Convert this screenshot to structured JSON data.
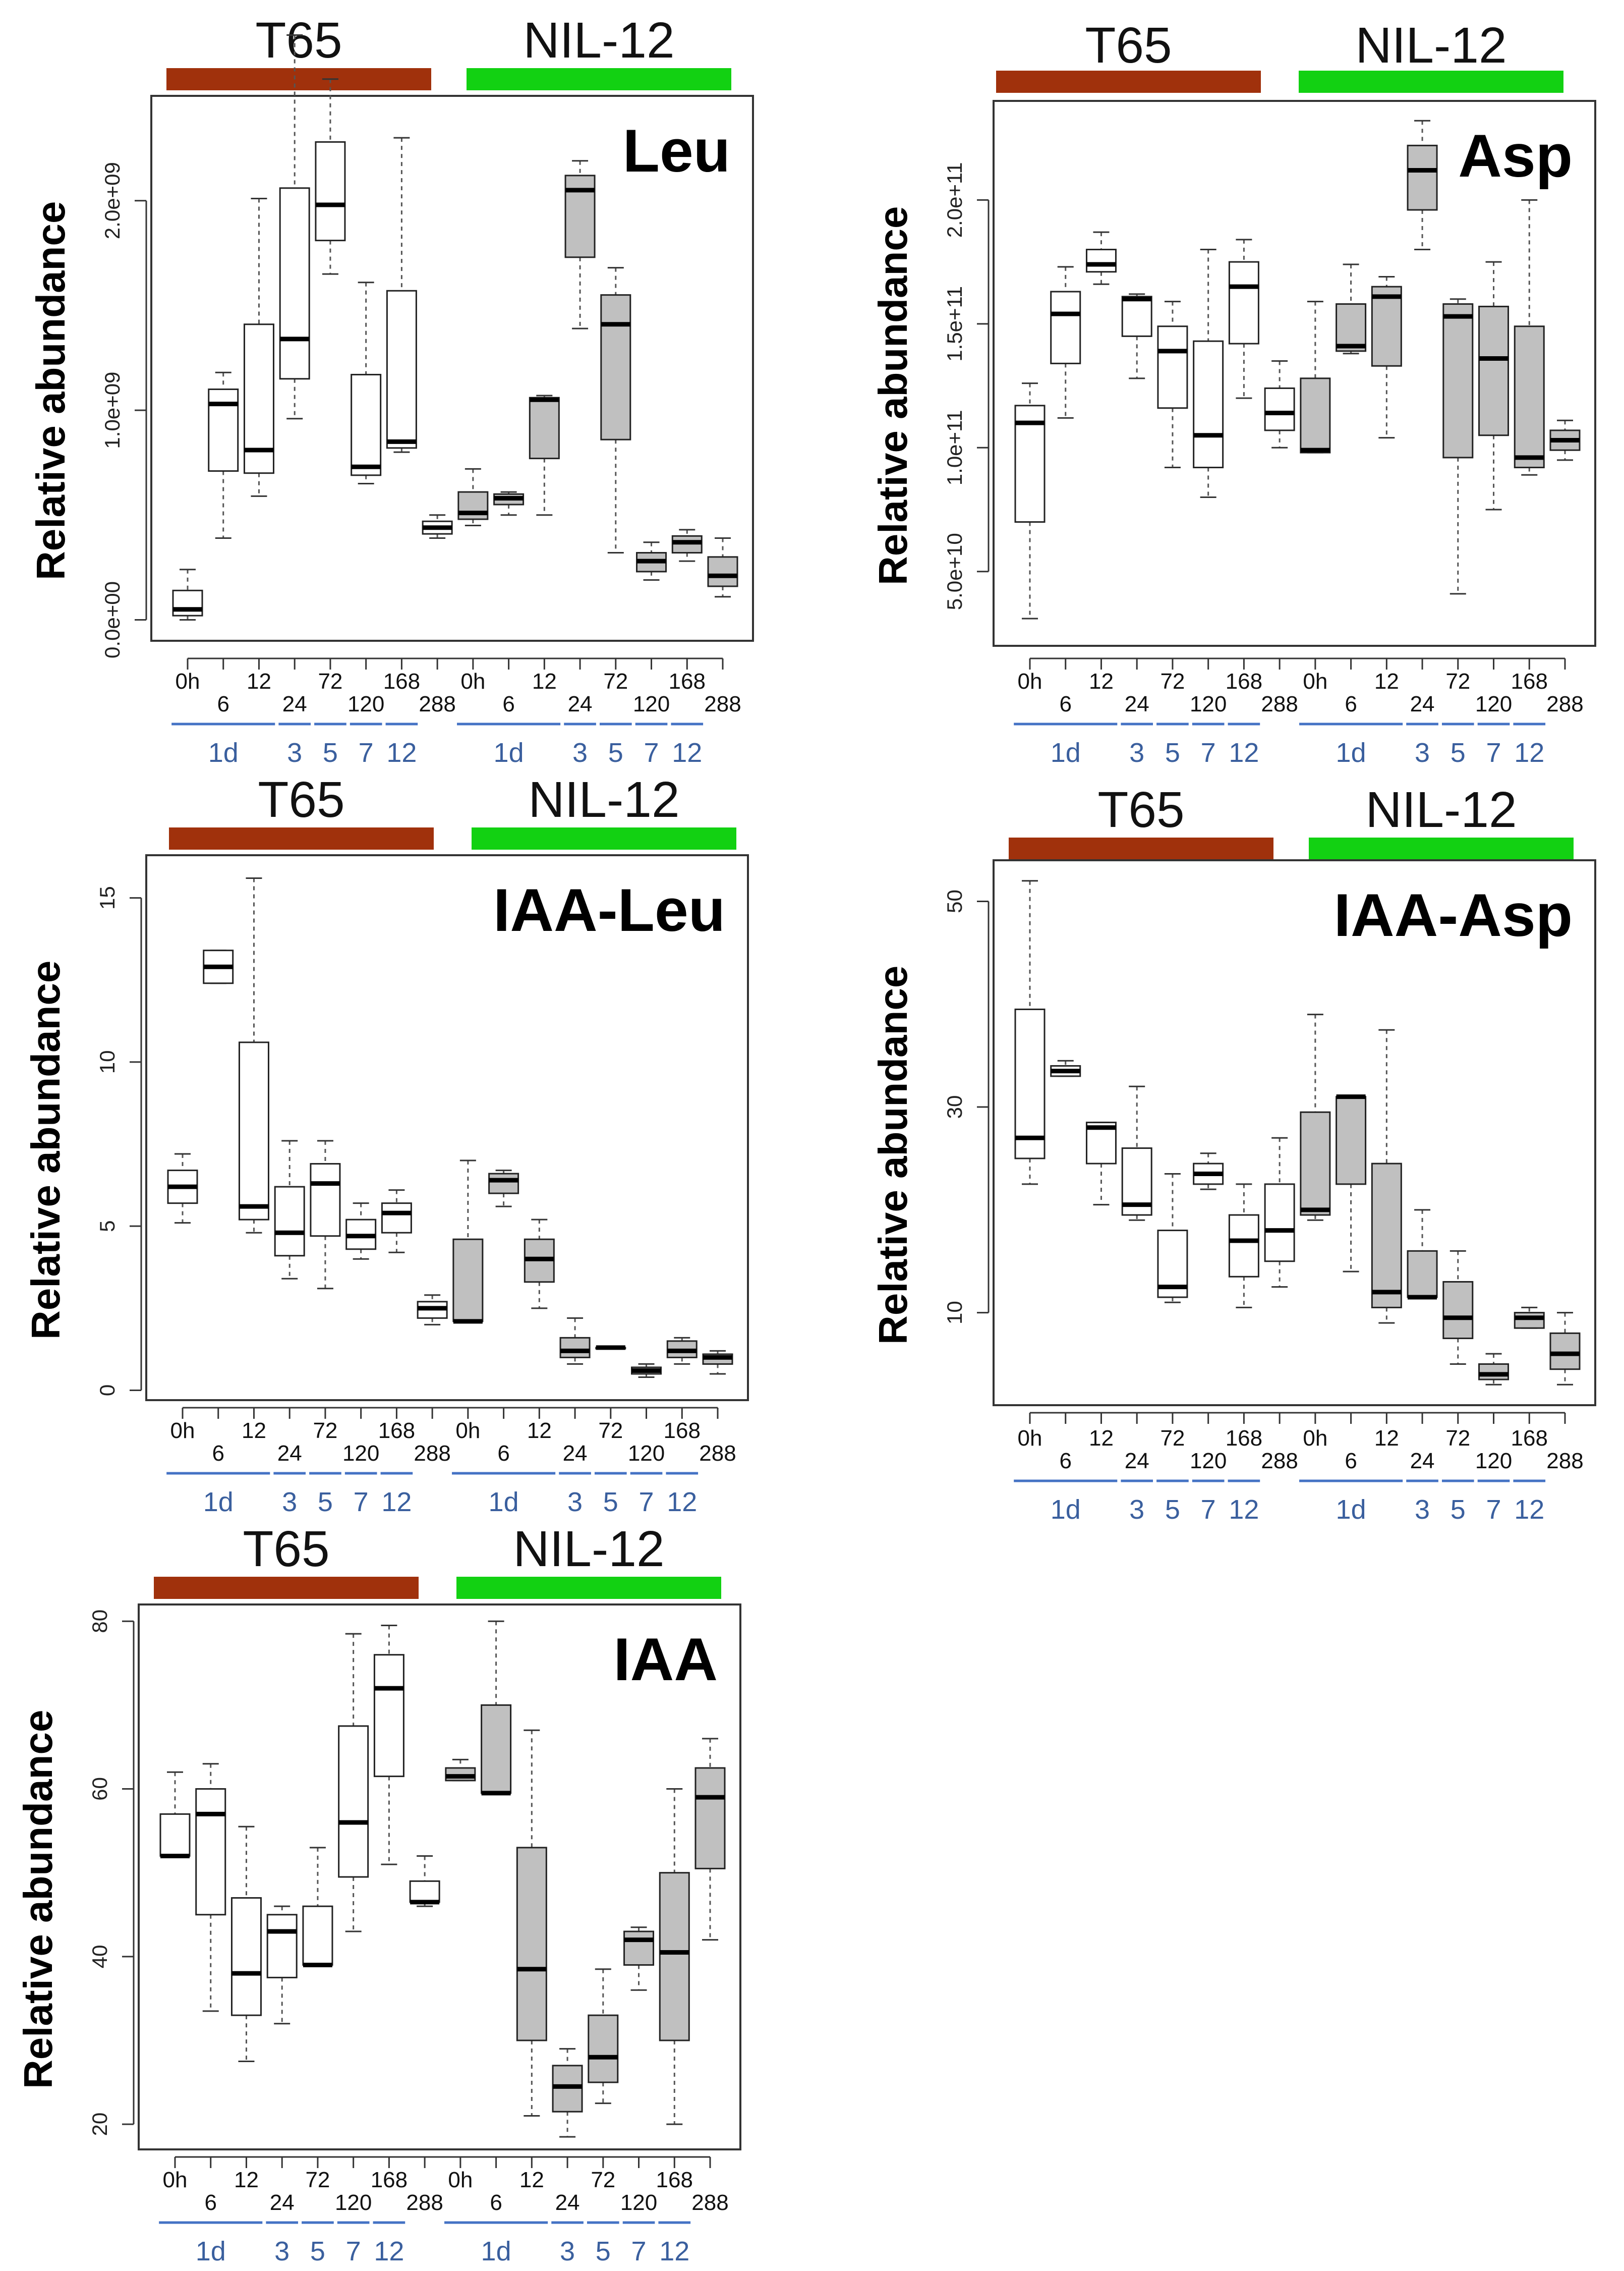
{
  "colors": {
    "t65_bar": "#a0310c",
    "nil_bar": "#12d112",
    "t65_fill": "#ffffff",
    "nil_fill": "#c0c0c0",
    "day_line": "#4472c4",
    "day_text": "#3a5f9e"
  },
  "groups": {
    "t65": "T65",
    "nil": "NIL-12"
  },
  "ylabel": "Relative abundance",
  "hour_labels": [
    "0h",
    "6",
    "12",
    "24",
    "72",
    "120",
    "168",
    "288",
    "0h",
    "6",
    "12",
    "24",
    "72",
    "120",
    "168",
    "288"
  ],
  "day_labels": [
    "1d",
    "3",
    "5",
    "7",
    "12",
    "1d",
    "3",
    "5",
    "7",
    "12"
  ],
  "chart_data": [
    {
      "type": "boxplot",
      "title": "Leu",
      "ylabel": "Relative abundance",
      "xlabel": "",
      "ylim": [
        -100000000.0,
        2500000000.0
      ],
      "yticks": [
        0,
        1000000000.0,
        2000000000.0
      ],
      "ytick_labels": [
        "0.0e+00",
        "1.0e+09",
        "2.0e+09"
      ],
      "groups": [
        "T65",
        "NIL-12"
      ],
      "boxes": [
        {
          "group": "T65",
          "time": "0h",
          "min": 0.0,
          "q1": 20000000.0,
          "median": 50000000.0,
          "q3": 140000000.0,
          "max": 240000000.0
        },
        {
          "group": "T65",
          "time": "6",
          "min": 390000000.0,
          "q1": 710000000.0,
          "median": 1030000000.0,
          "q3": 1100000000.0,
          "max": 1180000000.0
        },
        {
          "group": "T65",
          "time": "12",
          "min": 590000000.0,
          "q1": 700000000.0,
          "median": 810000000.0,
          "q3": 1410000000.0,
          "max": 2010000000.0
        },
        {
          "group": "T65",
          "time": "24",
          "min": 960000000.0,
          "q1": 1150000000.0,
          "median": 1340000000.0,
          "q3": 2060000000.0,
          "max": 2790000000.0
        },
        {
          "group": "T65",
          "time": "72",
          "min": 1650000000.0,
          "q1": 1810000000.0,
          "median": 1980000000.0,
          "q3": 2280000000.0,
          "max": 2580000000.0
        },
        {
          "group": "T65",
          "time": "120",
          "min": 650000000.0,
          "q1": 690000000.0,
          "median": 730000000.0,
          "q3": 1170000000.0,
          "max": 1610000000.0
        },
        {
          "group": "T65",
          "time": "168",
          "min": 800000000.0,
          "q1": 820000000.0,
          "median": 850000000.0,
          "q3": 1570000000.0,
          "max": 2300000000.0
        },
        {
          "group": "T65",
          "time": "288",
          "min": 390000000.0,
          "q1": 410000000.0,
          "median": 440000000.0,
          "q3": 470000000.0,
          "max": 500000000.0
        },
        {
          "group": "NIL-12",
          "time": "0h",
          "min": 450000000.0,
          "q1": 480000000.0,
          "median": 510000000.0,
          "q3": 610000000.0,
          "max": 720000000.0
        },
        {
          "group": "NIL-12",
          "time": "6",
          "min": 500000000.0,
          "q1": 550000000.0,
          "median": 580000000.0,
          "q3": 600000000.0,
          "max": 610000000.0
        },
        {
          "group": "NIL-12",
          "time": "12",
          "min": 500000000.0,
          "q1": 770000000.0,
          "median": 1050000000.0,
          "q3": 1060000000.0,
          "max": 1070000000.0
        },
        {
          "group": "NIL-12",
          "time": "24",
          "min": 1390000000.0,
          "q1": 1730000000.0,
          "median": 2050000000.0,
          "q3": 2120000000.0,
          "max": 2190000000.0
        },
        {
          "group": "NIL-12",
          "time": "72",
          "min": 320000000.0,
          "q1": 860000000.0,
          "median": 1410000000.0,
          "q3": 1550000000.0,
          "max": 1680000000.0
        },
        {
          "group": "NIL-12",
          "time": "120",
          "min": 190000000.0,
          "q1": 230000000.0,
          "median": 280000000.0,
          "q3": 320000000.0,
          "max": 370000000.0
        },
        {
          "group": "NIL-12",
          "time": "168",
          "min": 280000000.0,
          "q1": 320000000.0,
          "median": 370000000.0,
          "q3": 400000000.0,
          "max": 430000000.0
        },
        {
          "group": "NIL-12",
          "time": "288",
          "min": 110000000.0,
          "q1": 160000000.0,
          "median": 210000000.0,
          "q3": 300000000.0,
          "max": 390000000.0
        }
      ]
    },
    {
      "type": "boxplot",
      "title": "Asp",
      "ylabel": "Relative abundance",
      "xlabel": "",
      "ylim": [
        20000000000.0,
        240000000000.0
      ],
      "yticks": [
        50000000000.0,
        100000000000.0,
        150000000000.0,
        200000000000.0
      ],
      "ytick_labels": [
        "5.0e+10",
        "1.0e+11",
        "1.5e+11",
        "2.0e+11"
      ],
      "groups": [
        "T65",
        "NIL-12"
      ],
      "boxes": [
        {
          "group": "T65",
          "time": "0h",
          "min": 31000000000.0,
          "q1": 70000000000.0,
          "median": 110000000000.0,
          "q3": 117000000000.0,
          "max": 126000000000.0
        },
        {
          "group": "T65",
          "time": "6",
          "min": 112000000000.0,
          "q1": 134000000000.0,
          "median": 154000000000.0,
          "q3": 163000000000.0,
          "max": 173000000000.0
        },
        {
          "group": "T65",
          "time": "12",
          "min": 166000000000.0,
          "q1": 171000000000.0,
          "median": 174000000000.0,
          "q3": 180000000000.0,
          "max": 187000000000.0
        },
        {
          "group": "T65",
          "time": "24",
          "min": 128000000000.0,
          "q1": 145000000000.0,
          "median": 160000000000.0,
          "q3": 161000000000.0,
          "max": 162000000000.0
        },
        {
          "group": "T65",
          "time": "72",
          "min": 92000000000.0,
          "q1": 116000000000.0,
          "median": 139000000000.0,
          "q3": 149000000000.0,
          "max": 159000000000.0
        },
        {
          "group": "T65",
          "time": "120",
          "min": 80000000000.0,
          "q1": 92000000000.0,
          "median": 105000000000.0,
          "q3": 143000000000.0,
          "max": 180000000000.0
        },
        {
          "group": "T65",
          "time": "168",
          "min": 120000000000.0,
          "q1": 142000000000.0,
          "median": 165000000000.0,
          "q3": 175000000000.0,
          "max": 184000000000.0
        },
        {
          "group": "T65",
          "time": "288",
          "min": 100000000000.0,
          "q1": 107000000000.0,
          "median": 114000000000.0,
          "q3": 124000000000.0,
          "max": 135000000000.0
        },
        {
          "group": "NIL-12",
          "time": "0h",
          "min": 98000000000.0,
          "q1": 98000000000.0,
          "median": 99000000000.0,
          "q3": 128000000000.0,
          "max": 159000000000.0
        },
        {
          "group": "NIL-12",
          "time": "6",
          "min": 138000000000.0,
          "q1": 139000000000.0,
          "median": 141000000000.0,
          "q3": 158000000000.0,
          "max": 174000000000.0
        },
        {
          "group": "NIL-12",
          "time": "12",
          "min": 104000000000.0,
          "q1": 133000000000.0,
          "median": 161000000000.0,
          "q3": 165000000000.0,
          "max": 169000000000.0
        },
        {
          "group": "NIL-12",
          "time": "24",
          "min": 180000000000.0,
          "q1": 196000000000.0,
          "median": 212000000000.0,
          "q3": 222000000000.0,
          "max": 232000000000.0
        },
        {
          "group": "NIL-12",
          "time": "72",
          "min": 41000000000.0,
          "q1": 96000000000.0,
          "median": 153000000000.0,
          "q3": 158000000000.0,
          "max": 160000000000.0
        },
        {
          "group": "NIL-12",
          "time": "120",
          "min": 75000000000.0,
          "q1": 105000000000.0,
          "median": 136000000000.0,
          "q3": 157000000000.0,
          "max": 175000000000.0
        },
        {
          "group": "NIL-12",
          "time": "168",
          "min": 89000000000.0,
          "q1": 92000000000.0,
          "median": 96000000000.0,
          "q3": 149000000000.0,
          "max": 200000000000.0
        },
        {
          "group": "NIL-12",
          "time": "288",
          "min": 95000000000.0,
          "q1": 99000000000.0,
          "median": 103000000000.0,
          "q3": 107000000000.0,
          "max": 111000000000.0
        }
      ]
    },
    {
      "type": "boxplot",
      "title": "IAA-Leu",
      "ylabel": "Relative abundance",
      "xlabel": "",
      "ylim": [
        -0.3,
        16.3
      ],
      "yticks": [
        0,
        5,
        10,
        15
      ],
      "ytick_labels": [
        "0",
        "5",
        "10",
        "15"
      ],
      "groups": [
        "T65",
        "NIL-12"
      ],
      "boxes": [
        {
          "group": "T65",
          "time": "0h",
          "min": 5.1,
          "q1": 5.7,
          "median": 6.2,
          "q3": 6.7,
          "max": 7.2
        },
        {
          "group": "T65",
          "time": "6",
          "min": 12.4,
          "q1": 12.4,
          "median": 12.9,
          "q3": 13.4,
          "max": 13.4
        },
        {
          "group": "T65",
          "time": "12",
          "min": 4.8,
          "q1": 5.2,
          "median": 5.6,
          "q3": 10.6,
          "max": 15.6
        },
        {
          "group": "T65",
          "time": "24",
          "min": 3.4,
          "q1": 4.1,
          "median": 4.8,
          "q3": 6.2,
          "max": 7.6
        },
        {
          "group": "T65",
          "time": "72",
          "min": 3.1,
          "q1": 4.7,
          "median": 6.3,
          "q3": 6.9,
          "max": 7.6
        },
        {
          "group": "T65",
          "time": "120",
          "min": 4.0,
          "q1": 4.3,
          "median": 4.7,
          "q3": 5.2,
          "max": 5.7
        },
        {
          "group": "T65",
          "time": "168",
          "min": 4.2,
          "q1": 4.8,
          "median": 5.4,
          "q3": 5.7,
          "max": 6.1
        },
        {
          "group": "T65",
          "time": "288",
          "min": 2.0,
          "q1": 2.2,
          "median": 2.5,
          "q3": 2.7,
          "max": 2.9
        },
        {
          "group": "NIL-12",
          "time": "0h",
          "min": 2.1,
          "q1": 2.1,
          "median": 2.1,
          "q3": 4.6,
          "max": 7.0
        },
        {
          "group": "NIL-12",
          "time": "6",
          "min": 5.6,
          "q1": 6.0,
          "median": 6.4,
          "q3": 6.6,
          "max": 6.7
        },
        {
          "group": "NIL-12",
          "time": "12",
          "min": 2.5,
          "q1": 3.3,
          "median": 4.0,
          "q3": 4.6,
          "max": 5.2
        },
        {
          "group": "NIL-12",
          "time": "24",
          "min": 0.8,
          "q1": 1.0,
          "median": 1.2,
          "q3": 1.6,
          "max": 2.2
        },
        {
          "group": "NIL-12",
          "time": "72",
          "min": 1.3,
          "q1": 1.3,
          "median": 1.3,
          "q3": 1.3,
          "max": 1.3
        },
        {
          "group": "NIL-12",
          "time": "120",
          "min": 0.4,
          "q1": 0.5,
          "median": 0.6,
          "q3": 0.7,
          "max": 0.8
        },
        {
          "group": "NIL-12",
          "time": "168",
          "min": 0.8,
          "q1": 1.0,
          "median": 1.2,
          "q3": 1.5,
          "max": 1.6
        },
        {
          "group": "NIL-12",
          "time": "288",
          "min": 0.5,
          "q1": 0.8,
          "median": 1.0,
          "q3": 1.1,
          "max": 1.2
        }
      ]
    },
    {
      "type": "boxplot",
      "title": "IAA-Asp",
      "ylabel": "Relative abundance",
      "xlabel": "",
      "ylim": [
        1,
        54
      ],
      "yticks": [
        10,
        30,
        50
      ],
      "ytick_labels": [
        "10",
        "30",
        "50"
      ],
      "groups": [
        "T65",
        "NIL-12"
      ],
      "boxes": [
        {
          "group": "T65",
          "time": "0h",
          "min": 22.5,
          "q1": 25,
          "median": 27,
          "q3": 39.5,
          "max": 52
        },
        {
          "group": "T65",
          "time": "6",
          "min": 33,
          "q1": 33,
          "median": 33.5,
          "q3": 34,
          "max": 34.5
        },
        {
          "group": "T65",
          "time": "12",
          "min": 20.5,
          "q1": 24.5,
          "median": 28,
          "q3": 28.5,
          "max": 28.5
        },
        {
          "group": "T65",
          "time": "24",
          "min": 19,
          "q1": 19.5,
          "median": 20.5,
          "q3": 26,
          "max": 32
        },
        {
          "group": "T65",
          "time": "72",
          "min": 11,
          "q1": 11.5,
          "median": 12.5,
          "q3": 18,
          "max": 23.5
        },
        {
          "group": "T65",
          "time": "120",
          "min": 22,
          "q1": 22.5,
          "median": 23.5,
          "q3": 24.5,
          "max": 25.5
        },
        {
          "group": "T65",
          "time": "168",
          "min": 10.5,
          "q1": 13.5,
          "median": 17,
          "q3": 19.5,
          "max": 22.5
        },
        {
          "group": "T65",
          "time": "288",
          "min": 12.5,
          "q1": 15,
          "median": 18,
          "q3": 22.5,
          "max": 27
        },
        {
          "group": "NIL-12",
          "time": "0h",
          "min": 19,
          "q1": 19.5,
          "median": 20,
          "q3": 29.5,
          "max": 39
        },
        {
          "group": "NIL-12",
          "time": "6",
          "min": 14,
          "q1": 22.5,
          "median": 31,
          "q3": 31,
          "max": 31
        },
        {
          "group": "NIL-12",
          "time": "12",
          "min": 9,
          "q1": 10.5,
          "median": 12,
          "q3": 24.5,
          "max": 37.5
        },
        {
          "group": "NIL-12",
          "time": "24",
          "min": 11.5,
          "q1": 11.5,
          "median": 11.5,
          "q3": 16,
          "max": 20
        },
        {
          "group": "NIL-12",
          "time": "72",
          "min": 5,
          "q1": 7.5,
          "median": 9.5,
          "q3": 13,
          "max": 16
        },
        {
          "group": "NIL-12",
          "time": "120",
          "min": 3,
          "q1": 3.5,
          "median": 4,
          "q3": 5,
          "max": 6
        },
        {
          "group": "NIL-12",
          "time": "168",
          "min": 8.5,
          "q1": 8.5,
          "median": 9.5,
          "q3": 10,
          "max": 10.5
        },
        {
          "group": "NIL-12",
          "time": "288",
          "min": 3,
          "q1": 4.5,
          "median": 6,
          "q3": 8,
          "max": 10
        }
      ]
    },
    {
      "type": "boxplot",
      "title": "IAA",
      "ylabel": "Relative abundance",
      "xlabel": "",
      "ylim": [
        17,
        82
      ],
      "yticks": [
        20,
        40,
        60,
        80
      ],
      "ytick_labels": [
        "20",
        "40",
        "60",
        "80"
      ],
      "groups": [
        "T65",
        "NIL-12"
      ],
      "boxes": [
        {
          "group": "T65",
          "time": "0h",
          "min": 52,
          "q1": 52,
          "median": 52,
          "q3": 57,
          "max": 62
        },
        {
          "group": "T65",
          "time": "6",
          "min": 33.5,
          "q1": 45,
          "median": 57,
          "q3": 60,
          "max": 63
        },
        {
          "group": "T65",
          "time": "12",
          "min": 27.5,
          "q1": 33,
          "median": 38,
          "q3": 47,
          "max": 55.5
        },
        {
          "group": "T65",
          "time": "24",
          "min": 32,
          "q1": 37.5,
          "median": 43,
          "q3": 45,
          "max": 46
        },
        {
          "group": "T65",
          "time": "72",
          "min": 39,
          "q1": 39,
          "median": 39,
          "q3": 46,
          "max": 53
        },
        {
          "group": "T65",
          "time": "120",
          "min": 43,
          "q1": 49.5,
          "median": 56,
          "q3": 67.5,
          "max": 78.5
        },
        {
          "group": "T65",
          "time": "168",
          "min": 51,
          "q1": 61.5,
          "median": 72,
          "q3": 76,
          "max": 79.5
        },
        {
          "group": "T65",
          "time": "288",
          "min": 46,
          "q1": 46.5,
          "median": 46.5,
          "q3": 49,
          "max": 52
        },
        {
          "group": "NIL-12",
          "time": "0h",
          "min": 61,
          "q1": 61,
          "median": 61.5,
          "q3": 62.5,
          "max": 63.5
        },
        {
          "group": "NIL-12",
          "time": "6",
          "min": 59.5,
          "q1": 59.5,
          "median": 59.5,
          "q3": 70,
          "max": 80
        },
        {
          "group": "NIL-12",
          "time": "12",
          "min": 21,
          "q1": 30,
          "median": 38.5,
          "q3": 53,
          "max": 67
        },
        {
          "group": "NIL-12",
          "time": "24",
          "min": 18.5,
          "q1": 21.5,
          "median": 24.5,
          "q3": 27,
          "max": 29
        },
        {
          "group": "NIL-12",
          "time": "72",
          "min": 22.5,
          "q1": 25,
          "median": 28,
          "q3": 33,
          "max": 38.5
        },
        {
          "group": "NIL-12",
          "time": "120",
          "min": 36,
          "q1": 39,
          "median": 42,
          "q3": 43,
          "max": 43.5
        },
        {
          "group": "NIL-12",
          "time": "168",
          "min": 20,
          "q1": 30,
          "median": 40.5,
          "q3": 50,
          "max": 60
        },
        {
          "group": "NIL-12",
          "time": "288",
          "min": 42,
          "q1": 50.5,
          "median": 59,
          "q3": 62.5,
          "max": 66
        }
      ]
    }
  ]
}
